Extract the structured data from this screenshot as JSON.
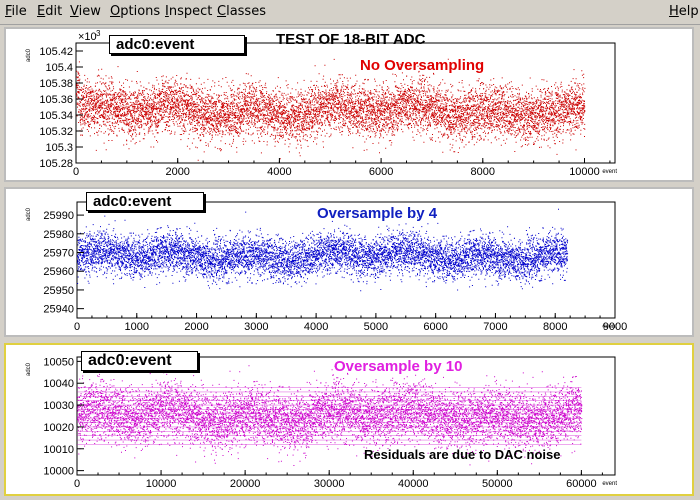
{
  "menubar": {
    "items": [
      "File",
      "Edit",
      "View",
      "Options",
      "Inspect",
      "Classes"
    ],
    "help": "Help"
  },
  "canvas_title": "TEST  OF  18-BIT  ADC",
  "pads": [
    {
      "label": "adc0:event",
      "annotation": "No Oversampling",
      "annotation_color": "#e00000",
      "exponent_label": "×10",
      "exponent": "3",
      "ylabel": "adc0",
      "xlabel": "event"
    },
    {
      "label": "adc0:event",
      "annotation": "Oversample by 4",
      "annotation_color": "#1020c0",
      "ylabel": "adc0",
      "xlabel": "event"
    },
    {
      "label": "adc0:event",
      "annotation": "Oversample  by  10",
      "annotation_color": "#e020e0",
      "note": "Residuals  are  due  to  DAC  noise",
      "ylabel": "adc0",
      "xlabel": "event"
    }
  ],
  "chart_data": [
    {
      "type": "scatter",
      "title": "adc0:event",
      "xlabel": "event",
      "ylabel": "adc0",
      "xlim": [
        0,
        10600
      ],
      "ylim": [
        105.28,
        105.43
      ],
      "x_ticks": [
        "0",
        "2000",
        "4000",
        "6000",
        "8000",
        "10000"
      ],
      "y_ticks": [
        "105.28",
        "105.3",
        "105.32",
        "105.34",
        "105.36",
        "105.38",
        "105.4",
        "105.42"
      ],
      "y_multiplier": "×10^3",
      "color": "#cc0000",
      "n_points": 10000,
      "y_center": 105.345,
      "y_spread": 0.018
    },
    {
      "type": "scatter",
      "title": "adc0:event",
      "xlabel": "event",
      "ylabel": "adc0",
      "xlim": [
        0,
        9000
      ],
      "ylim": [
        25935,
        25997
      ],
      "x_ticks": [
        "0",
        "1000",
        "2000",
        "3000",
        "4000",
        "5000",
        "6000",
        "7000",
        "8000",
        "9000"
      ],
      "y_ticks": [
        "25940",
        "25950",
        "25960",
        "25970",
        "25980",
        "25990"
      ],
      "color": "#0000cc",
      "n_points": 8200,
      "y_center": 25968,
      "y_spread": 6
    },
    {
      "type": "scatter",
      "title": "adc0:event",
      "xlabel": "event",
      "ylabel": "adc0",
      "xlim": [
        0,
        64000
      ],
      "ylim": [
        9998,
        10052
      ],
      "x_ticks": [
        "0",
        "10000",
        "20000",
        "30000",
        "40000",
        "50000",
        "60000"
      ],
      "y_ticks": [
        "10000",
        "10010",
        "10020",
        "10030",
        "10040",
        "10050"
      ],
      "color": "#cc00cc",
      "n_points": 60000,
      "y_center": 10025,
      "y_spread": 7
    }
  ]
}
